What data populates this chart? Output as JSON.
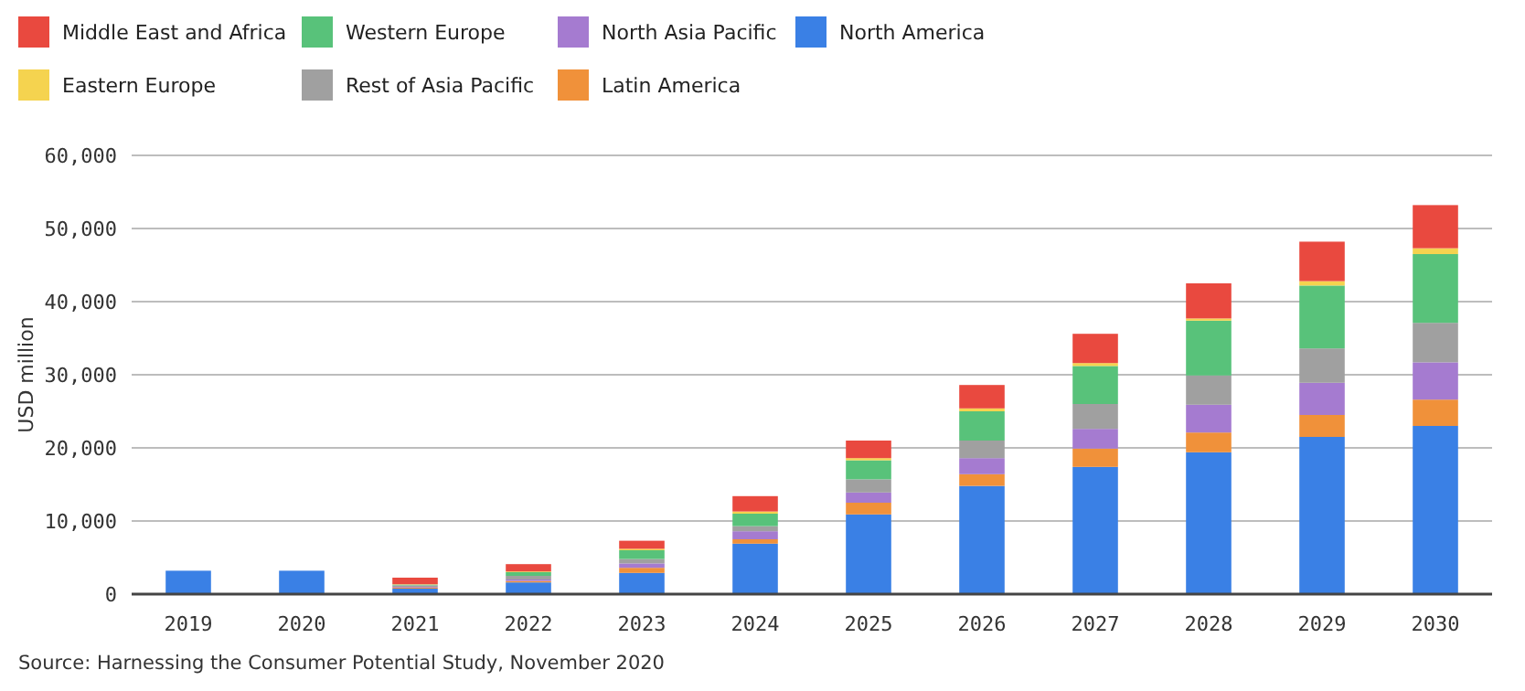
{
  "chart_data": {
    "type": "bar",
    "stacked": true,
    "ylabel": "USD million",
    "categories": [
      "2019",
      "2020",
      "2021",
      "2022",
      "2023",
      "2024",
      "2025",
      "2026",
      "2027",
      "2028",
      "2029",
      "2030"
    ],
    "series": [
      {
        "name": "North America",
        "color": "#3a80e5",
        "values": [
          3200,
          3200,
          750,
          1600,
          2900,
          6900,
          10900,
          14800,
          17400,
          19400,
          21500,
          23000
        ]
      },
      {
        "name": "Latin America",
        "color": "#f0913a",
        "values": [
          0,
          0,
          150,
          200,
          700,
          600,
          1600,
          1600,
          2500,
          2700,
          3000,
          3600
        ]
      },
      {
        "name": "North Asia Pacific",
        "color": "#a57bd0",
        "values": [
          0,
          0,
          100,
          200,
          600,
          1100,
          1400,
          2200,
          2700,
          3800,
          4400,
          5100
        ]
      },
      {
        "name": "Rest of Asia Pacific",
        "color": "#a0a0a0",
        "values": [
          0,
          0,
          200,
          500,
          600,
          700,
          1800,
          2400,
          3400,
          4000,
          4700,
          5400
        ]
      },
      {
        "name": "Western Europe",
        "color": "#58c27a",
        "values": [
          0,
          0,
          100,
          500,
          1200,
          1700,
          2600,
          4000,
          5200,
          7500,
          8600,
          9400
        ]
      },
      {
        "name": "Eastern Europe",
        "color": "#f5d34f",
        "values": [
          0,
          0,
          50,
          100,
          200,
          300,
          300,
          400,
          400,
          300,
          600,
          800
        ]
      },
      {
        "name": "Middle East and Africa",
        "color": "#e9493f",
        "values": [
          0,
          0,
          900,
          1000,
          1100,
          2100,
          2400,
          3200,
          4000,
          4800,
          5400,
          5900
        ]
      }
    ],
    "ylim": [
      0,
      60000
    ],
    "yticks": [
      {
        "value": 0,
        "label": "0"
      },
      {
        "value": 10000,
        "label": "10,000"
      },
      {
        "value": 20000,
        "label": "20,000"
      },
      {
        "value": 30000,
        "label": "30,000"
      },
      {
        "value": 40000,
        "label": "40,000"
      },
      {
        "value": 50000,
        "label": "50,000"
      },
      {
        "value": 60000,
        "label": "60,000"
      }
    ],
    "grid": "y",
    "legend": "top left",
    "annotations": [
      "Source: Harnessing the Consumer Potential Study, November 2020"
    ]
  }
}
